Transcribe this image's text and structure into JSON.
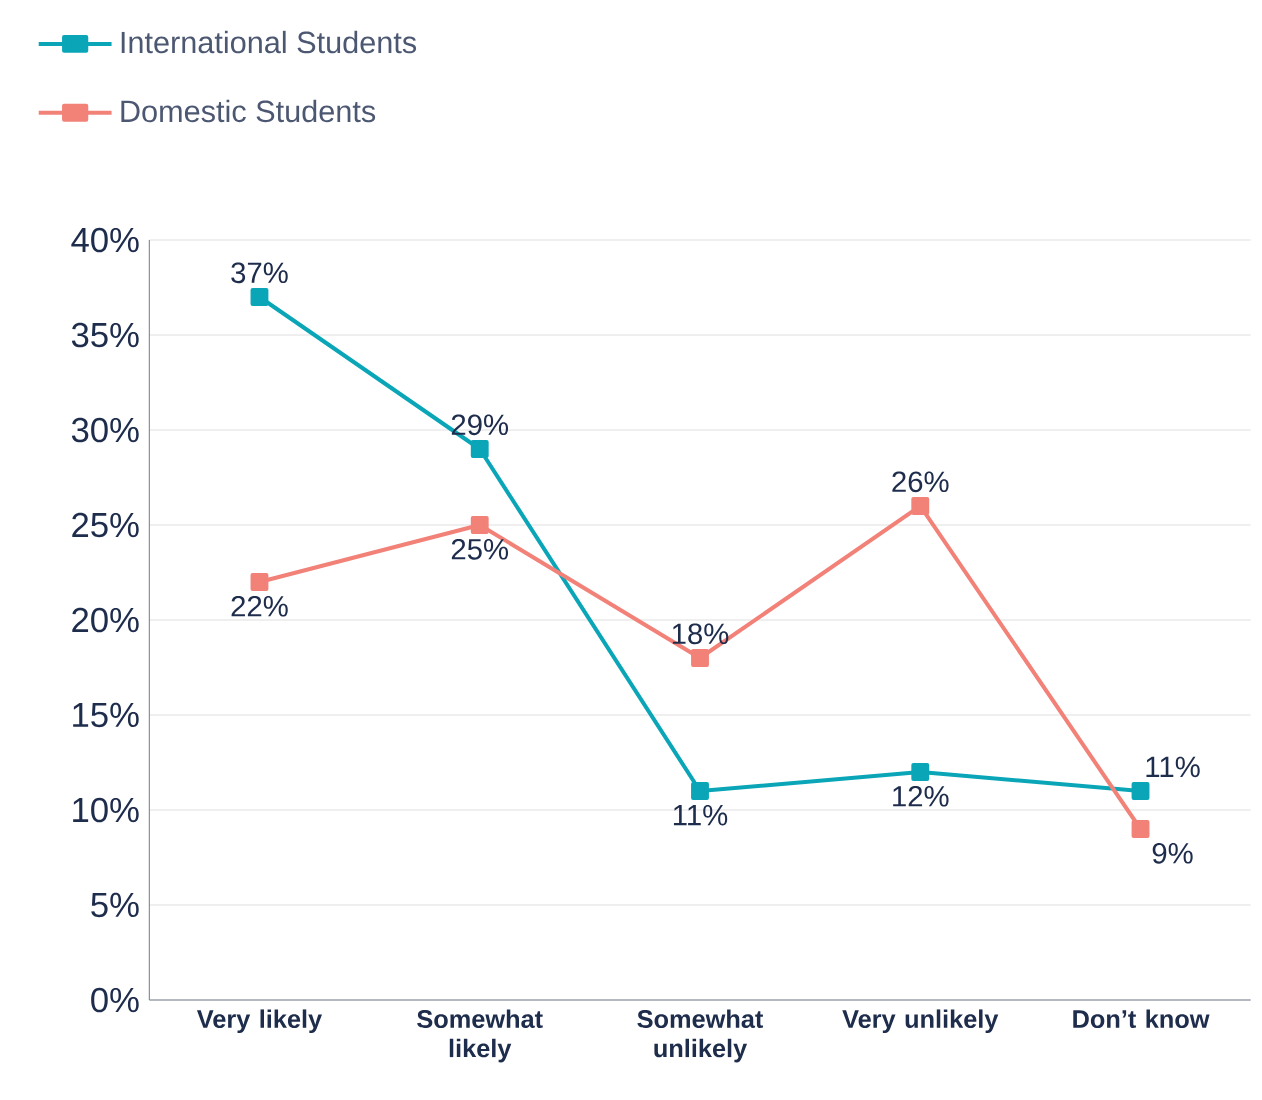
{
  "chart_data": {
    "type": "line",
    "categories": [
      "Very likely",
      "Somewhat likely",
      "Somewhat unlikely",
      "Very unlikely",
      "Don’t know"
    ],
    "series": [
      {
        "name": "International Students",
        "color": "#0aa6b8",
        "values": [
          37,
          29,
          11,
          12,
          11
        ],
        "value_labels": [
          "37%",
          "29%",
          "11%",
          "12%",
          "11%"
        ]
      },
      {
        "name": "Domestic Students",
        "color": "#f28178",
        "values": [
          22,
          25,
          18,
          26,
          9
        ],
        "value_labels": [
          "22%",
          "25%",
          "18%",
          "26%",
          "9%"
        ]
      }
    ],
    "ylim": [
      0,
      40
    ],
    "yticks": [
      {
        "value": 0,
        "label": "0%"
      },
      {
        "value": 5,
        "label": "5%"
      },
      {
        "value": 10,
        "label": "10%"
      },
      {
        "value": 15,
        "label": "15%"
      },
      {
        "value": 20,
        "label": "20%"
      },
      {
        "value": 25,
        "label": "25%"
      },
      {
        "value": 30,
        "label": "30%"
      },
      {
        "value": 35,
        "label": "35%"
      },
      {
        "value": 40,
        "label": "40%"
      }
    ],
    "grid": "y",
    "legend": "top left",
    "marker": "square",
    "line_style": "solid"
  }
}
